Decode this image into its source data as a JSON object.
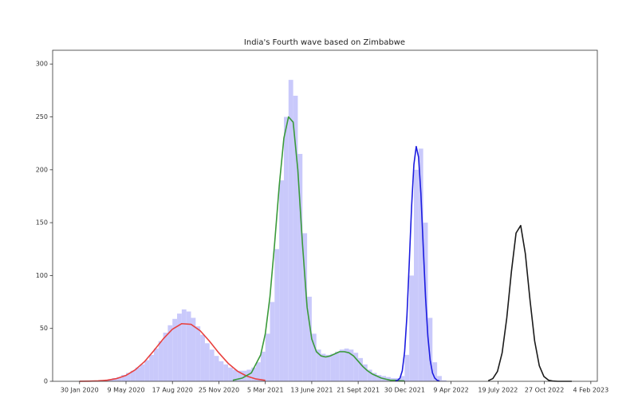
{
  "chart_data": {
    "type": "combo",
    "title": "India's Fourth wave based on Zimbabwe",
    "xlim": [
      "2019-12-03",
      "2023-02-18"
    ],
    "ylim": [
      0,
      313
    ],
    "yticks": [
      0,
      50,
      100,
      150,
      200,
      250,
      300
    ],
    "xticks": [
      {
        "value": "2020-01-30",
        "label": "30 Jan 2020"
      },
      {
        "value": "2020-05-09",
        "label": "9 May 2020"
      },
      {
        "value": "2020-08-17",
        "label": "17 Aug 2020"
      },
      {
        "value": "2020-11-25",
        "label": "25 Nov 2020"
      },
      {
        "value": "2021-03-05",
        "label": "5 Mar 2021"
      },
      {
        "value": "2021-06-13",
        "label": "13 June 2021"
      },
      {
        "value": "2021-09-21",
        "label": "21 Sept 2021"
      },
      {
        "value": "2021-12-30",
        "label": "30 Dec 2021"
      },
      {
        "value": "2022-04-09",
        "label": "9 Apr 2022"
      },
      {
        "value": "2022-07-19",
        "label": "19 July 2022"
      },
      {
        "value": "2022-10-27",
        "label": "27 Oct 2022"
      },
      {
        "value": "2023-02-04",
        "label": "4 Feb 2023"
      }
    ],
    "bar_days": 10,
    "series": [
      {
        "type": "bar",
        "color": "#c9c9fb",
        "x": [
          "2020-01-30",
          "2020-02-09",
          "2020-02-19",
          "2020-02-29",
          "2020-03-10",
          "2020-03-20",
          "2020-03-30",
          "2020-04-09",
          "2020-04-19",
          "2020-04-29",
          "2020-05-09",
          "2020-05-19",
          "2020-05-29",
          "2020-06-08",
          "2020-06-18",
          "2020-06-28",
          "2020-07-08",
          "2020-07-18",
          "2020-07-28",
          "2020-08-07",
          "2020-08-17",
          "2020-08-27",
          "2020-09-06",
          "2020-09-16",
          "2020-09-26",
          "2020-10-06",
          "2020-10-16",
          "2020-10-26",
          "2020-11-05",
          "2020-11-15",
          "2020-11-25",
          "2020-12-05",
          "2020-12-15",
          "2020-12-25",
          "2021-01-04",
          "2021-01-14",
          "2021-01-24",
          "2021-02-03",
          "2021-02-13",
          "2021-02-23",
          "2021-03-05",
          "2021-03-15",
          "2021-03-25",
          "2021-04-04",
          "2021-04-14",
          "2021-04-24",
          "2021-05-04",
          "2021-05-14",
          "2021-05-24",
          "2021-06-03",
          "2021-06-13",
          "2021-06-23",
          "2021-07-03",
          "2021-07-13",
          "2021-07-23",
          "2021-08-02",
          "2021-08-12",
          "2021-08-22",
          "2021-09-01",
          "2021-09-11",
          "2021-09-21",
          "2021-10-01",
          "2021-10-11",
          "2021-10-21",
          "2021-10-31",
          "2021-11-10",
          "2021-11-20",
          "2021-11-30",
          "2021-12-10",
          "2021-12-20",
          "2021-12-30",
          "2022-01-09",
          "2022-01-19",
          "2022-01-29",
          "2022-02-08",
          "2022-02-18",
          "2022-02-28",
          "2022-03-10",
          "2022-03-20"
        ],
        "values": [
          0,
          0,
          0,
          0,
          0,
          1,
          2,
          3,
          4,
          6,
          8,
          10,
          13,
          16,
          20,
          25,
          31,
          38,
          46,
          53,
          59,
          64,
          68,
          66,
          60,
          52,
          44,
          36,
          30,
          24,
          19,
          16,
          13,
          11,
          10,
          10,
          11,
          13,
          18,
          28,
          45,
          75,
          125,
          190,
          250,
          285,
          270,
          215,
          140,
          80,
          45,
          30,
          26,
          25,
          26,
          28,
          30,
          31,
          30,
          27,
          22,
          16,
          11,
          8,
          6,
          5,
          4,
          3,
          3,
          5,
          25,
          100,
          200,
          220,
          150,
          60,
          18,
          5,
          1
        ]
      },
      {
        "type": "line",
        "color": "#e8413f",
        "x": [
          "2020-01-30",
          "2020-02-19",
          "2020-03-10",
          "2020-03-30",
          "2020-04-19",
          "2020-05-09",
          "2020-05-29",
          "2020-06-18",
          "2020-07-08",
          "2020-07-28",
          "2020-08-17",
          "2020-09-06",
          "2020-09-26",
          "2020-10-16",
          "2020-11-05",
          "2020-11-25",
          "2020-12-15",
          "2021-01-04",
          "2021-01-24",
          "2021-02-13",
          "2021-03-05"
        ],
        "values": [
          0.04,
          0.14,
          0.4,
          1.1,
          2.6,
          5.6,
          10.9,
          18.7,
          29,
          40,
          49.3,
          54.5,
          53.9,
          47.7,
          37.8,
          26.8,
          17,
          9.6,
          4.9,
          2.2,
          0.9
        ]
      },
      {
        "type": "line",
        "color": "#3a9a3a",
        "x": [
          "2020-12-25",
          "2021-01-14",
          "2021-02-03",
          "2021-02-23",
          "2021-03-05",
          "2021-03-15",
          "2021-03-25",
          "2021-04-04",
          "2021-04-14",
          "2021-04-24",
          "2021-05-04",
          "2021-05-14",
          "2021-05-24",
          "2021-06-03",
          "2021-06-13",
          "2021-06-23",
          "2021-07-03",
          "2021-07-13",
          "2021-07-23",
          "2021-08-02",
          "2021-08-12",
          "2021-08-22",
          "2021-09-01",
          "2021-09-11",
          "2021-09-21",
          "2021-10-01",
          "2021-10-11",
          "2021-10-21",
          "2021-10-31",
          "2021-11-10",
          "2021-11-20",
          "2021-11-30",
          "2021-12-10",
          "2021-12-20",
          "2021-12-30"
        ],
        "values": [
          1,
          3,
          8,
          25,
          45,
          80,
          130,
          185,
          230,
          250,
          245,
          200,
          130,
          70,
          40,
          28,
          24,
          23,
          24,
          26,
          28,
          28,
          27,
          24,
          19,
          14,
          10,
          7,
          5,
          3,
          2,
          1,
          1,
          0.5,
          0.3
        ]
      },
      {
        "type": "line",
        "color": "#1c1ce0",
        "x": [
          "2021-12-10",
          "2021-12-15",
          "2021-12-20",
          "2021-12-25",
          "2021-12-30",
          "2022-01-04",
          "2022-01-09",
          "2022-01-14",
          "2022-01-19",
          "2022-01-24",
          "2022-01-29",
          "2022-02-03",
          "2022-02-08",
          "2022-02-13",
          "2022-02-18",
          "2022-02-23",
          "2022-02-28",
          "2022-03-05",
          "2022-03-10",
          "2022-03-15"
        ],
        "values": [
          0.3,
          1,
          3,
          10,
          28,
          62,
          112,
          165,
          205,
          222,
          212,
          178,
          128,
          80,
          43,
          20,
          8,
          3,
          1,
          0.3
        ]
      },
      {
        "type": "line",
        "color": "#1a1a1a",
        "x": [
          "2022-06-28",
          "2022-07-08",
          "2022-07-18",
          "2022-07-28",
          "2022-08-07",
          "2022-08-17",
          "2022-08-27",
          "2022-09-06",
          "2022-09-16",
          "2022-09-26",
          "2022-10-06",
          "2022-10-16",
          "2022-10-26",
          "2022-11-05",
          "2022-11-15",
          "2022-11-25",
          "2022-12-25"
        ],
        "values": [
          0.5,
          2.6,
          9.4,
          26.9,
          59.9,
          103.8,
          140.2,
          147.3,
          120.6,
          77,
          38.2,
          14.8,
          4.5,
          1,
          0.2,
          0,
          0
        ]
      }
    ]
  }
}
